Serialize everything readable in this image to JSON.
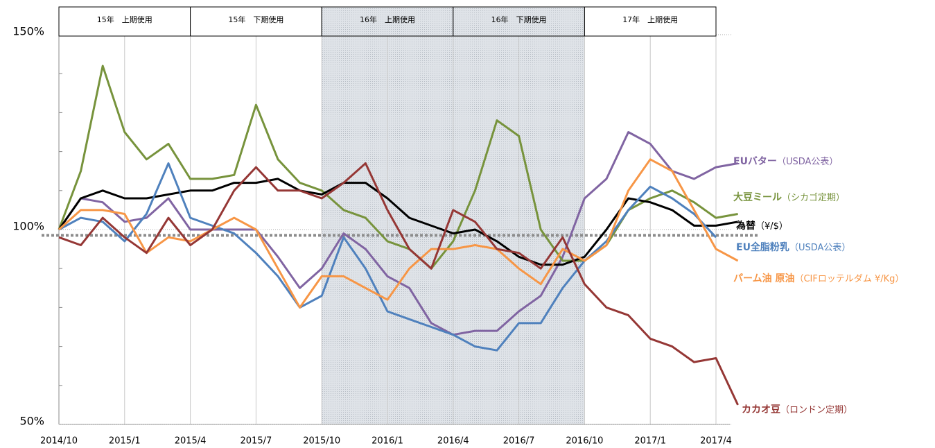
{
  "chart_data": {
    "type": "line",
    "categories": [
      "2014/10",
      null,
      null,
      "2015/1",
      null,
      null,
      "2015/4",
      null,
      null,
      "2015/7",
      null,
      null,
      "2015/10",
      null,
      null,
      "2016/1",
      null,
      null,
      "2016/4",
      null,
      null,
      "2016/7",
      null,
      null,
      "2016/10",
      null,
      null,
      "2017/1",
      null,
      null,
      "2017/4",
      null
    ],
    "ylim": [
      50,
      150
    ],
    "yticks": [
      {
        "value": 50,
        "label": "50%"
      },
      {
        "value": 100,
        "label": "100%"
      },
      {
        "value": 150,
        "label": "150%"
      }
    ],
    "reference_line": 98.5,
    "periods": [
      {
        "label": "15年　上期使用",
        "from": "2014/10",
        "to": "2015/4"
      },
      {
        "label": "15年　下期使用",
        "from": "2015/4",
        "to": "2015/10"
      },
      {
        "label": "16年　上期使用",
        "from": "2015/10",
        "to": "2016/4"
      },
      {
        "label": "16年　下期使用",
        "from": "2016/4",
        "to": "2016/10"
      },
      {
        "label": "17年　上期使用",
        "from": "2016/10",
        "to": "2017/4"
      }
    ],
    "shaded": {
      "from": "2015/10",
      "to": "2016/10"
    },
    "series": [
      {
        "name": "EUバター",
        "note": "（USDA公表）",
        "color": "#8064a2",
        "values": [
          100,
          108,
          107,
          102,
          103,
          108,
          100,
          100,
          100,
          100,
          93,
          85,
          90,
          99,
          95,
          88,
          85,
          76,
          73,
          74,
          74,
          79,
          83,
          93,
          108,
          113,
          125,
          122,
          115,
          113,
          116,
          117
        ]
      },
      {
        "name": "大豆ミール",
        "note": "（シカゴ定期）",
        "color": "#77933c",
        "values": [
          100,
          115,
          142,
          125,
          118,
          122,
          113,
          113,
          114,
          132,
          118,
          112,
          110,
          105,
          103,
          97,
          95,
          90,
          97,
          110,
          128,
          124,
          100,
          92,
          92,
          96,
          105,
          108,
          110,
          107,
          103,
          104
        ]
      },
      {
        "name": "為替",
        "note": "（¥/$）",
        "color": "#000000",
        "values": [
          100,
          108,
          110,
          108,
          108,
          109,
          110,
          110,
          112,
          112,
          113,
          110,
          109,
          112,
          112,
          108,
          103,
          101,
          99,
          100,
          97,
          93,
          91,
          91,
          93,
          100,
          108,
          107,
          105,
          101,
          101,
          102
        ]
      },
      {
        "name": "EU全脂粉乳",
        "note": "（USDA公表）",
        "color": "#4f81bd",
        "values": [
          100,
          103,
          102,
          97,
          104,
          117,
          103,
          101,
          99,
          94,
          88,
          80,
          83,
          98,
          90,
          79,
          77,
          75,
          73,
          70,
          69,
          76,
          76,
          85,
          92,
          97,
          105,
          111,
          108,
          104,
          98,
          null
        ]
      },
      {
        "name": "パーム油 原油",
        "note": "（CIFロッテルダム ¥/Kg）",
        "color": "#f79646",
        "values": [
          100,
          105,
          105,
          104,
          94,
          98,
          97,
          100,
          103,
          100,
          90,
          80,
          88,
          88,
          85,
          82,
          90,
          95,
          95,
          96,
          95,
          90,
          86,
          95,
          92,
          96,
          110,
          118,
          115,
          105,
          95,
          92
        ]
      },
      {
        "name": "カカオ豆",
        "note": "（ロンドン定期）",
        "color": "#953735",
        "values": [
          98,
          96,
          103,
          98,
          94,
          103,
          96,
          100,
          110,
          116,
          110,
          110,
          108,
          112,
          117,
          105,
          95,
          90,
          105,
          102,
          95,
          94,
          90,
          98,
          86,
          80,
          78,
          72,
          70,
          66,
          67,
          55
        ]
      }
    ]
  }
}
